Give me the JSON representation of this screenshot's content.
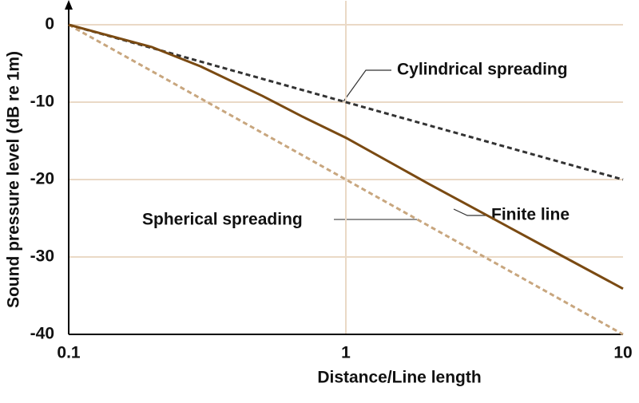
{
  "chart_data": {
    "type": "line",
    "xlabel": "Distance/Line length",
    "ylabel": "Sound pressure level (dB re 1m)",
    "xscale": "log",
    "xlim": [
      0.1,
      10
    ],
    "xticks": [
      0.1,
      1,
      10
    ],
    "ylim": [
      -40,
      0
    ],
    "yticks": [
      0,
      -10,
      -20,
      -30,
      -40
    ],
    "grid": true,
    "grid_color": "#ead9c6",
    "series": [
      {
        "name": "Cylindrical spreading",
        "color": "#333333",
        "dash": true,
        "x": [
          0.1,
          10
        ],
        "values": [
          0,
          -20
        ]
      },
      {
        "name": "Spherical spreading",
        "color": "#c8a67e",
        "dash": true,
        "x": [
          0.1,
          10
        ],
        "values": [
          0,
          -40
        ]
      },
      {
        "name": "Finite line",
        "color": "#7a4a12",
        "dash": false,
        "x": [
          0.1,
          0.2,
          0.3,
          0.5,
          0.7,
          1,
          2,
          3,
          5,
          10
        ],
        "values": [
          0,
          -2.9,
          -5.4,
          -9.2,
          -11.9,
          -14.6,
          -20.6,
          -24,
          -28.3,
          -34.1
        ]
      }
    ]
  }
}
